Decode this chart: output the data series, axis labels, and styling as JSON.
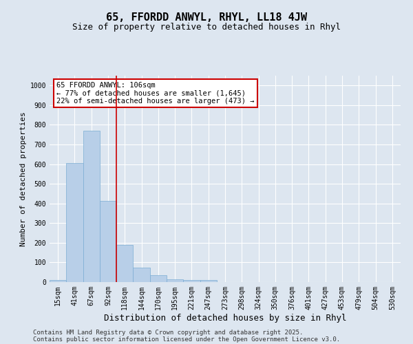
{
  "title": "65, FFORDD ANWYL, RHYL, LL18 4JW",
  "subtitle": "Size of property relative to detached houses in Rhyl",
  "xlabel": "Distribution of detached houses by size in Rhyl",
  "ylabel": "Number of detached properties",
  "categories": [
    "15sqm",
    "41sqm",
    "67sqm",
    "92sqm",
    "118sqm",
    "144sqm",
    "170sqm",
    "195sqm",
    "221sqm",
    "247sqm",
    "273sqm",
    "298sqm",
    "324sqm",
    "350sqm",
    "376sqm",
    "401sqm",
    "427sqm",
    "453sqm",
    "479sqm",
    "504sqm",
    "530sqm"
  ],
  "values": [
    12,
    605,
    770,
    412,
    190,
    75,
    35,
    15,
    10,
    10,
    0,
    0,
    0,
    0,
    0,
    0,
    0,
    0,
    0,
    0,
    0
  ],
  "bar_color": "#b8cfe8",
  "bar_edge_color": "#7aadd4",
  "red_line_index": 4,
  "annotation_title": "65 FFORDD ANWYL: 106sqm",
  "annotation_line1": "← 77% of detached houses are smaller (1,645)",
  "annotation_line2": "22% of semi-detached houses are larger (473) →",
  "annotation_box_facecolor": "#ffffff",
  "annotation_box_edgecolor": "#cc0000",
  "red_line_color": "#cc0000",
  "ylim": [
    0,
    1050
  ],
  "yticks": [
    0,
    100,
    200,
    300,
    400,
    500,
    600,
    700,
    800,
    900,
    1000
  ],
  "background_color": "#dde6f0",
  "grid_color": "#ffffff",
  "footer_line1": "Contains HM Land Registry data © Crown copyright and database right 2025.",
  "footer_line2": "Contains public sector information licensed under the Open Government Licence v3.0.",
  "title_fontsize": 11,
  "subtitle_fontsize": 9,
  "axis_label_fontsize": 8,
  "tick_fontsize": 7,
  "annotation_fontsize": 7.5,
  "footer_fontsize": 6.5
}
